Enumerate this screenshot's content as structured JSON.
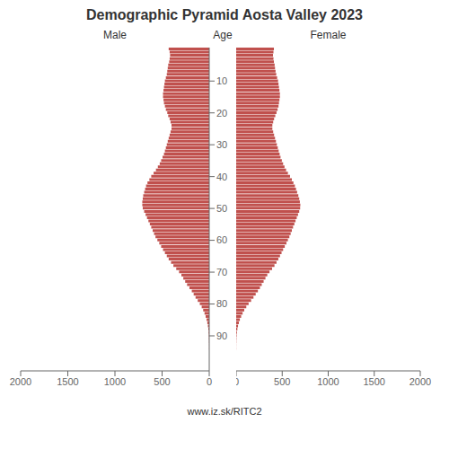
{
  "chart_data": {
    "type": "bar",
    "orientation": "horizontal",
    "title": "Demographic Pyramid Aosta Valley 2023",
    "ylabel": "Age",
    "annotations": [
      "www.iz.sk/RITC2"
    ],
    "grid": false,
    "y": [
      0,
      1,
      2,
      3,
      4,
      5,
      6,
      7,
      8,
      9,
      10,
      11,
      12,
      13,
      14,
      15,
      16,
      17,
      18,
      19,
      20,
      21,
      22,
      23,
      24,
      25,
      26,
      27,
      28,
      29,
      30,
      31,
      32,
      33,
      34,
      35,
      36,
      37,
      38,
      39,
      40,
      41,
      42,
      43,
      44,
      45,
      46,
      47,
      48,
      49,
      50,
      51,
      52,
      53,
      54,
      55,
      56,
      57,
      58,
      59,
      60,
      61,
      62,
      63,
      64,
      65,
      66,
      67,
      68,
      69,
      70,
      71,
      72,
      73,
      74,
      75,
      76,
      77,
      78,
      79,
      80,
      81,
      82,
      83,
      84,
      85,
      86,
      87,
      88,
      89,
      90,
      91,
      92,
      93,
      94,
      95,
      96,
      97,
      98,
      99,
      100
    ],
    "series": [
      {
        "name": "Male",
        "color": "#c0504d",
        "values": [
          430,
          420,
          415,
          420,
          425,
          435,
          440,
          445,
          450,
          460,
          470,
          475,
          480,
          485,
          490,
          490,
          485,
          480,
          470,
          460,
          445,
          435,
          420,
          410,
          400,
          400,
          410,
          420,
          430,
          440,
          450,
          460,
          470,
          480,
          495,
          510,
          525,
          545,
          565,
          590,
          615,
          635,
          655,
          670,
          680,
          690,
          700,
          705,
          710,
          710,
          705,
          690,
          675,
          660,
          645,
          630,
          615,
          600,
          585,
          570,
          550,
          530,
          510,
          490,
          470,
          450,
          430,
          405,
          380,
          350,
          320,
          295,
          275,
          255,
          235,
          210,
          185,
          165,
          145,
          122,
          100,
          80,
          64,
          50,
          38,
          28,
          20,
          14,
          9,
          6,
          4,
          3,
          2,
          1,
          1,
          0,
          0,
          0,
          0,
          0,
          0
        ]
      },
      {
        "name": "Female",
        "color": "#c0504d",
        "values": [
          410,
          405,
          400,
          405,
          410,
          418,
          422,
          428,
          435,
          445,
          455,
          460,
          465,
          470,
          475,
          475,
          470,
          465,
          460,
          450,
          438,
          425,
          412,
          402,
          393,
          393,
          402,
          412,
          422,
          432,
          442,
          452,
          462,
          472,
          482,
          496,
          510,
          525,
          542,
          562,
          585,
          605,
          622,
          638,
          650,
          662,
          675,
          685,
          692,
          697,
          695,
          685,
          672,
          658,
          645,
          632,
          618,
          605,
          592,
          578,
          562,
          546,
          528,
          510,
          493,
          476,
          458,
          438,
          416,
          390,
          362,
          338,
          318,
          298,
          278,
          258,
          236,
          212,
          188,
          162,
          135,
          110,
          88,
          70,
          54,
          40,
          29,
          20,
          13,
          8,
          5,
          3,
          2,
          1,
          1,
          0,
          0,
          0,
          0,
          0,
          0
        ]
      }
    ],
    "xlim": [
      0,
      2000
    ],
    "xticks": [
      0,
      500,
      1000,
      1500,
      2000
    ],
    "ylim": [
      -0.5,
      101
    ],
    "yticks": [
      10,
      20,
      30,
      40,
      50,
      60,
      70,
      80,
      90
    ]
  }
}
